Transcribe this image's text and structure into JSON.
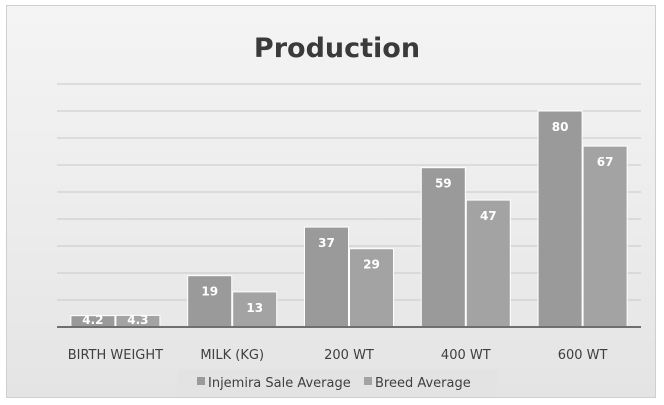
{
  "chart_data": {
    "type": "bar",
    "title": "Production",
    "categories": [
      "BIRTH WEIGHT",
      "MILK (KG)",
      "200 WT",
      "400 WT",
      "600 WT"
    ],
    "series": [
      {
        "name": "Injemira Sale Average",
        "values": [
          4.2,
          19,
          37,
          59,
          80
        ],
        "color": "#9a9a9a"
      },
      {
        "name": "Breed Average",
        "values": [
          4.3,
          13,
          29,
          47,
          67
        ],
        "color": "#a3a3a3"
      }
    ],
    "ylim": [
      0,
      90
    ],
    "grid": true,
    "legend": "bottom"
  }
}
